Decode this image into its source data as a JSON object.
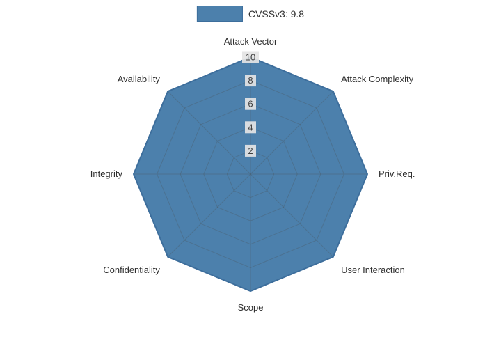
{
  "legend": {
    "label": "CVSSv3: 9.8"
  },
  "colors": {
    "background": "#FFFFFF",
    "fill": "#4C80AC",
    "outline": "#3D6E9C",
    "grid": "#4A4A4A",
    "grid_opacity": 0.28,
    "tick_bg": "#E4E4E4",
    "tick_text": "#3F3F3F",
    "label_text": "#2F2F2F"
  },
  "chart_data": {
    "type": "radar",
    "title": "CVSSv3: 9.8",
    "categories": [
      "Attack Vector",
      "Attack Complexity",
      "Priv.Req.",
      "User Interaction",
      "Scope",
      "Confidentiality",
      "Integrity",
      "Availability"
    ],
    "series": [
      {
        "name": "CVSSv3: 9.8",
        "values": [
          10,
          10,
          10,
          10,
          10,
          10,
          10,
          10
        ]
      }
    ],
    "radial_range": [
      0,
      10
    ],
    "ticks": [
      2,
      4,
      6,
      8,
      10
    ],
    "grid": true,
    "legend_position": "top-center"
  }
}
